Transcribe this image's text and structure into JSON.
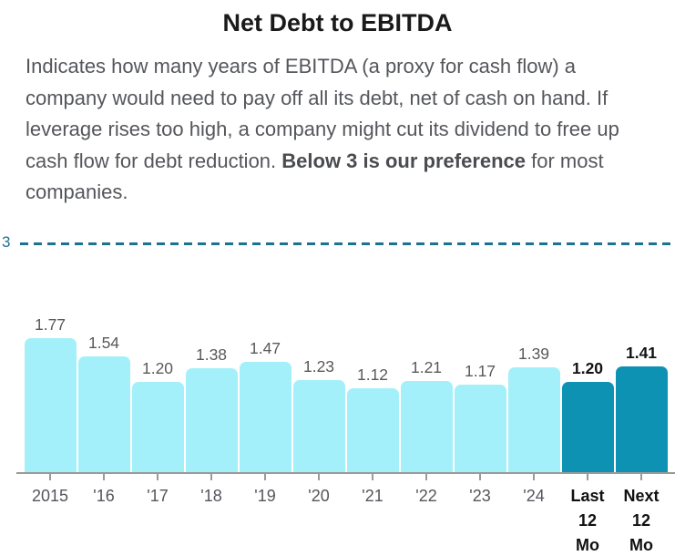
{
  "title": "Net Debt to EBITDA",
  "description": {
    "text_before": "Indicates how many years of EBITDA (a proxy for cash flow) a company would need to pay off all its debt, net of cash on hand. If leverage rises too high, a company might cut its dividend to free up cash flow for debt reduction. ",
    "bold": "Below 3 is our preference",
    "text_after": " for most companies."
  },
  "chart_data": {
    "type": "bar",
    "title": "Net Debt to EBITDA",
    "categories": [
      "2015",
      "'16",
      "'17",
      "'18",
      "'19",
      "'20",
      "'21",
      "'22",
      "'23",
      "'24",
      "Last 12 Mo",
      "Next 12 Mo"
    ],
    "values": [
      1.77,
      1.54,
      1.2,
      1.38,
      1.47,
      1.23,
      1.12,
      1.21,
      1.17,
      1.39,
      1.2,
      1.41
    ],
    "data_labels": [
      "1.77",
      "1.54",
      "1.20",
      "1.38",
      "1.47",
      "1.23",
      "1.12",
      "1.21",
      "1.17",
      "1.39",
      "1.20",
      "1.41"
    ],
    "highlighted": [
      false,
      false,
      false,
      false,
      false,
      false,
      false,
      false,
      false,
      false,
      true,
      true
    ],
    "reference_line": {
      "value": 3,
      "label": "3"
    },
    "xlabel": "",
    "ylabel": "",
    "ylim": [
      0,
      3.2
    ],
    "grid": false,
    "legend": "none",
    "colors": {
      "bar": "#a4f0fa",
      "bar_highlight": "#0d92b4",
      "reference_line": "#1c7390",
      "axis": "#9a9a9a",
      "value_label": "#595959",
      "value_label_highlight": "#111111",
      "tick_label": "#54565b"
    }
  }
}
